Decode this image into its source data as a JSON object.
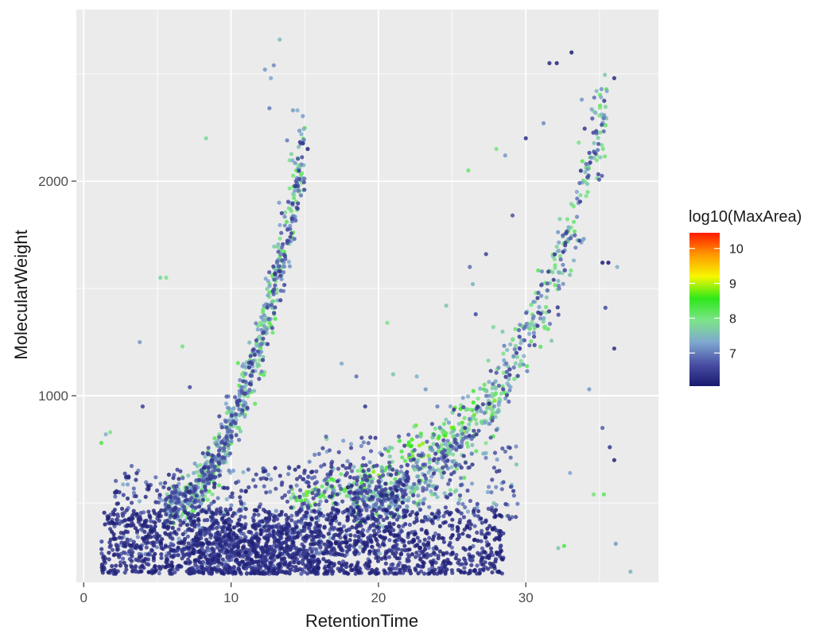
{
  "chart_data": {
    "type": "scatter",
    "title": "",
    "xlabel": "RetentionTime",
    "ylabel": "MolecularWeight",
    "xlim": [
      -0.5,
      39
    ],
    "ylim": [
      130,
      2800
    ],
    "x_ticks": [
      0,
      10,
      20,
      30
    ],
    "y_ticks": [
      1000,
      2000
    ],
    "grid": true,
    "legend": {
      "title": "log10(MaxArea)",
      "placement": "right",
      "type": "colorbar",
      "min": 6.05,
      "max": 10.45,
      "ticks": [
        7,
        8,
        9,
        10
      ],
      "colors": [
        "#191970",
        "#4a4fa3",
        "#7fa8d0",
        "#7de38a",
        "#2ee81a",
        "#f7f700",
        "#ff9900",
        "#ff1a00"
      ]
    },
    "colors": {
      "panel": "#ebebeb",
      "grid_major": "#ffffff"
    },
    "series": [
      {
        "clusters": [
          {
            "points": 1400,
            "x_range": [
              1.2,
              28.5
            ],
            "y_range": [
              170,
              470
            ],
            "c": [
              6.1,
              6.9
            ]
          },
          {
            "points": 650,
            "x_range": [
              2,
              22
            ],
            "y_range": [
              260,
              680
            ],
            "c": [
              6.2,
              7.6
            ]
          },
          {
            "points": 420,
            "x_range": [
              7,
              16
            ],
            "y_range": [
              170,
              400
            ],
            "c": [
              6.2,
              7.3
            ]
          },
          {
            "points": 260,
            "x_range": [
              15,
              29.5
            ],
            "y_range": [
              420,
              820
            ],
            "c": [
              6.4,
              7.9
            ]
          }
        ],
        "trends": [
          {
            "points": 780,
            "x_range": [
              5.5,
              15
            ],
            "y_from": 480,
            "y_to": 2150,
            "curve": 2.0,
            "spread": 70,
            "c": [
              6.4,
              8.3
            ]
          },
          {
            "points": 700,
            "x_range": [
              18,
              35.5
            ],
            "y_from": 520,
            "y_to": 2300,
            "curve": 2.3,
            "spread": 85,
            "c": [
              6.3,
              8.3
            ]
          },
          {
            "points": 160,
            "x_range": [
              14,
              28
            ],
            "y_from": 520,
            "y_to": 1000,
            "curve": 1.5,
            "spread": 45,
            "c": [
              7.6,
              8.9
            ]
          }
        ],
        "points": [
          {
            "x": 1.2,
            "y": 780,
            "c": 8.3
          },
          {
            "x": 1.5,
            "y": 820,
            "c": 7.4
          },
          {
            "x": 1.8,
            "y": 830,
            "c": 7.9
          },
          {
            "x": 3.8,
            "y": 1250,
            "c": 7.2
          },
          {
            "x": 4.0,
            "y": 950,
            "c": 6.5
          },
          {
            "x": 5.2,
            "y": 1550,
            "c": 7.8
          },
          {
            "x": 5.6,
            "y": 1550,
            "c": 7.9
          },
          {
            "x": 6.7,
            "y": 1230,
            "c": 8.0
          },
          {
            "x": 7.2,
            "y": 1040,
            "c": 6.6
          },
          {
            "x": 8.3,
            "y": 2200,
            "c": 7.8
          },
          {
            "x": 12.3,
            "y": 2520,
            "c": 7.2
          },
          {
            "x": 12.7,
            "y": 2480,
            "c": 7.3
          },
          {
            "x": 12.9,
            "y": 2540,
            "c": 7.1
          },
          {
            "x": 13.3,
            "y": 2660,
            "c": 7.5
          },
          {
            "x": 12.6,
            "y": 2340,
            "c": 7.0
          },
          {
            "x": 14.2,
            "y": 2330,
            "c": 7.2
          },
          {
            "x": 14.5,
            "y": 2330,
            "c": 7.4
          },
          {
            "x": 13.8,
            "y": 2190,
            "c": 7.0
          },
          {
            "x": 15.2,
            "y": 2150,
            "c": 6.2
          },
          {
            "x": 17.5,
            "y": 1150,
            "c": 7.3
          },
          {
            "x": 18.5,
            "y": 1090,
            "c": 6.9
          },
          {
            "x": 19.1,
            "y": 950,
            "c": 6.4
          },
          {
            "x": 20.6,
            "y": 1340,
            "c": 7.9
          },
          {
            "x": 21.0,
            "y": 1100,
            "c": 7.6
          },
          {
            "x": 22.6,
            "y": 1090,
            "c": 7.4
          },
          {
            "x": 23.2,
            "y": 1030,
            "c": 7.2
          },
          {
            "x": 24.0,
            "y": 950,
            "c": 7.0
          },
          {
            "x": 24.6,
            "y": 1420,
            "c": 7.6
          },
          {
            "x": 26.1,
            "y": 2050,
            "c": 8.1
          },
          {
            "x": 26.2,
            "y": 1600,
            "c": 6.9
          },
          {
            "x": 26.4,
            "y": 1520,
            "c": 7.4
          },
          {
            "x": 26.6,
            "y": 1380,
            "c": 6.6
          },
          {
            "x": 27.3,
            "y": 1660,
            "c": 6.5
          },
          {
            "x": 27.8,
            "y": 1320,
            "c": 7.8
          },
          {
            "x": 28.0,
            "y": 2150,
            "c": 8.0
          },
          {
            "x": 28.6,
            "y": 2120,
            "c": 7.2
          },
          {
            "x": 29.1,
            "y": 1840,
            "c": 6.7
          },
          {
            "x": 30.0,
            "y": 2200,
            "c": 6.3
          },
          {
            "x": 31.2,
            "y": 2270,
            "c": 7.1
          },
          {
            "x": 31.6,
            "y": 2550,
            "c": 6.3
          },
          {
            "x": 32.1,
            "y": 2550,
            "c": 6.2
          },
          {
            "x": 33.1,
            "y": 2600,
            "c": 6.1
          },
          {
            "x": 33.8,
            "y": 2380,
            "c": 7.2
          },
          {
            "x": 34.8,
            "y": 2420,
            "c": 7.5
          },
          {
            "x": 35.5,
            "y": 2420,
            "c": 7.3
          },
          {
            "x": 36.0,
            "y": 2480,
            "c": 6.3
          },
          {
            "x": 35.2,
            "y": 1620,
            "c": 6.1
          },
          {
            "x": 35.6,
            "y": 1620,
            "c": 6.0
          },
          {
            "x": 36.0,
            "y": 1220,
            "c": 6.3
          },
          {
            "x": 34.3,
            "y": 1030,
            "c": 7.2
          },
          {
            "x": 35.2,
            "y": 850,
            "c": 6.8
          },
          {
            "x": 35.7,
            "y": 760,
            "c": 6.4
          },
          {
            "x": 36.0,
            "y": 700,
            "c": 6.2
          },
          {
            "x": 35.4,
            "y": 1410,
            "c": 6.6
          },
          {
            "x": 36.1,
            "y": 310,
            "c": 7.2
          },
          {
            "x": 37.1,
            "y": 180,
            "c": 7.4
          },
          {
            "x": 35.3,
            "y": 540,
            "c": 8.2
          },
          {
            "x": 34.6,
            "y": 540,
            "c": 8.0
          },
          {
            "x": 33.0,
            "y": 640,
            "c": 7.3
          },
          {
            "x": 32.2,
            "y": 290,
            "c": 7.6
          },
          {
            "x": 32.6,
            "y": 300,
            "c": 8.3
          },
          {
            "x": 36.2,
            "y": 1600,
            "c": 7.4
          }
        ]
      }
    ]
  }
}
